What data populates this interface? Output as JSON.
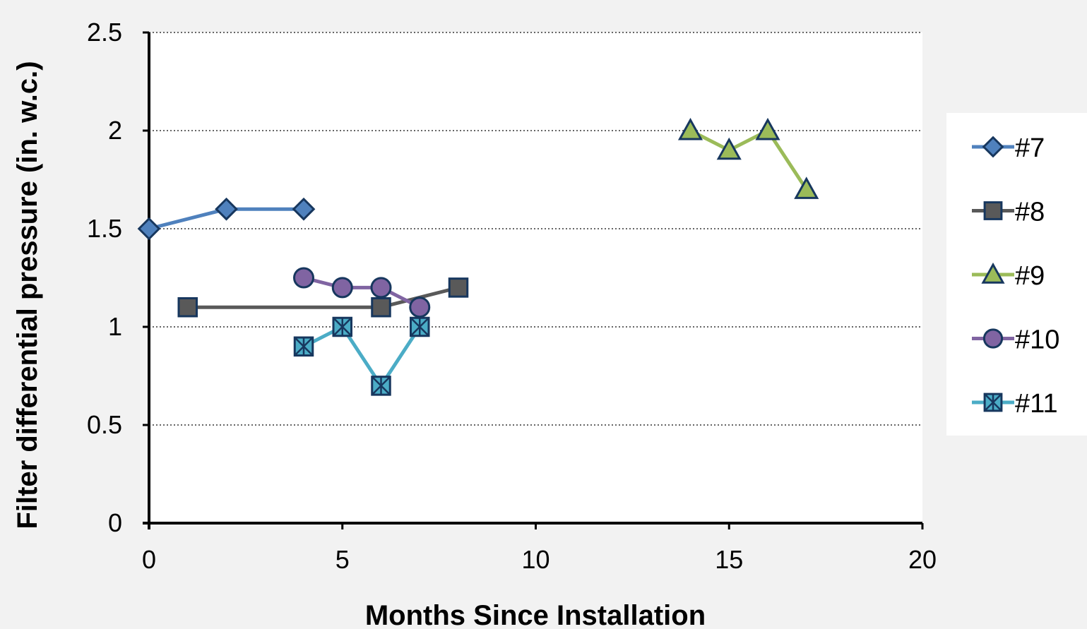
{
  "chart_data": {
    "type": "line",
    "xlabel": "Months Since Installation",
    "ylabel": "Filter differential pressure (in. w.c.)",
    "xlim": [
      0,
      20
    ],
    "ylim": [
      0,
      2.5
    ],
    "x_ticks": [
      "0",
      "5",
      "10",
      "15",
      "20"
    ],
    "y_ticks": [
      "0",
      "0.5",
      "1",
      "1.5",
      "2",
      "2.5"
    ],
    "grid": "horizontal dotted",
    "legend_position": "right",
    "series": [
      {
        "name": "#7",
        "marker": "diamond",
        "color": "#4f81bd",
        "x": [
          0,
          2,
          4
        ],
        "y": [
          1.5,
          1.6,
          1.6
        ]
      },
      {
        "name": "#8",
        "marker": "square",
        "color": "#595959",
        "x": [
          1,
          6,
          8
        ],
        "y": [
          1.1,
          1.1,
          1.2
        ]
      },
      {
        "name": "#9",
        "marker": "triangle",
        "color": "#9bbb59",
        "x": [
          14,
          15,
          16,
          17
        ],
        "y": [
          2.0,
          1.9,
          2.0,
          1.7
        ]
      },
      {
        "name": "#10",
        "marker": "circle",
        "color": "#8064a2",
        "x": [
          4,
          5,
          6,
          7
        ],
        "y": [
          1.25,
          1.2,
          1.2,
          1.1
        ]
      },
      {
        "name": "#11",
        "marker": "star-square",
        "color": "#4bacc6",
        "x": [
          4,
          5,
          6,
          7
        ],
        "y": [
          0.9,
          1.0,
          0.7,
          1.0
        ]
      }
    ]
  }
}
